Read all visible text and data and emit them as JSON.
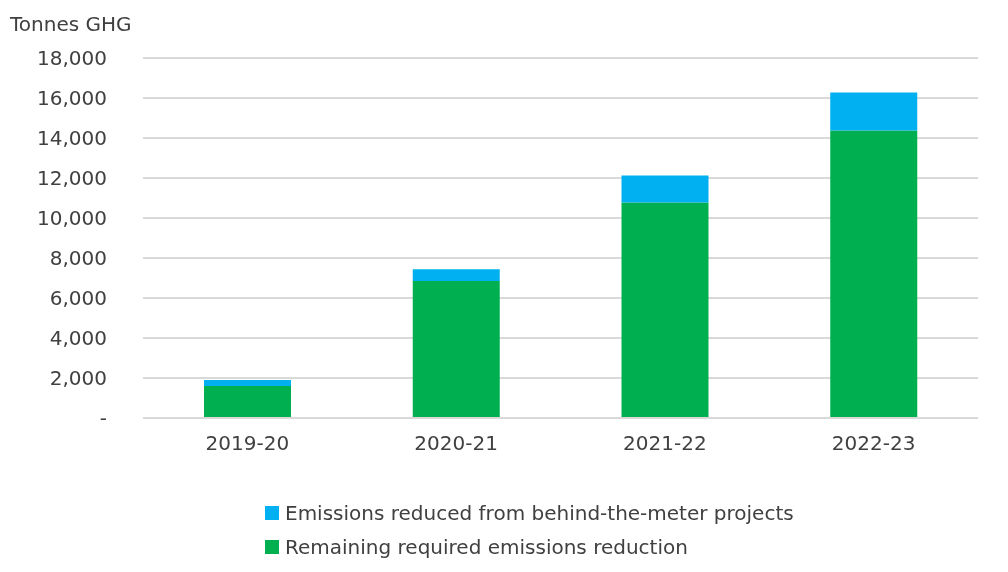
{
  "chart_data": {
    "type": "bar",
    "stacked": true,
    "ylabel": "Tonnes GHG",
    "categories": [
      "2019-20",
      "2020-21",
      "2021-22",
      "2022-23"
    ],
    "series": [
      {
        "name": "Remaining required emissions reduction",
        "color": "#00b050",
        "values": [
          1600,
          6850,
          10780,
          14380
        ]
      },
      {
        "name": "Emissions reduced from behind-the-meter projects",
        "color": "#00b0f0",
        "values": [
          300,
          590,
          1350,
          1900
        ]
      }
    ],
    "ylim": [
      0,
      18000
    ],
    "yticks": [
      {
        "value": 0,
        "label": "-"
      },
      {
        "value": 2000,
        "label": "2,000"
      },
      {
        "value": 4000,
        "label": "4,000"
      },
      {
        "value": 6000,
        "label": "6,000"
      },
      {
        "value": 8000,
        "label": "8,000"
      },
      {
        "value": 10000,
        "label": "10,000"
      },
      {
        "value": 12000,
        "label": "12,000"
      },
      {
        "value": 14000,
        "label": "14,000"
      },
      {
        "value": 16000,
        "label": "16,000"
      },
      {
        "value": 18000,
        "label": "18,000"
      }
    ],
    "grid": "y",
    "legend": "bottom"
  }
}
